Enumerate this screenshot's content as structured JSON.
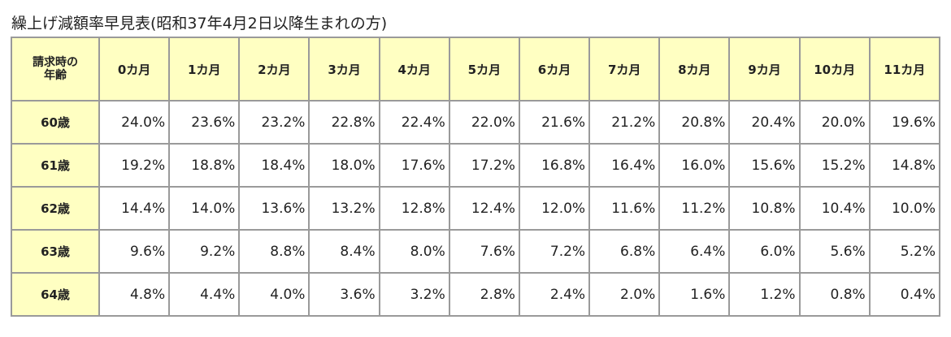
{
  "title": "繰上げ減額率早見表(昭和37年4月2日以降生まれの方)",
  "table": {
    "header": [
      "請求時の年齢",
      "0カ月",
      "1カ月",
      "2カ月",
      "3カ月",
      "4カ月",
      "5カ月",
      "6カ月",
      "7カ月",
      "8カ月",
      "9カ月",
      "10カ月",
      "11カ月"
    ],
    "rows": [
      [
        "60歳",
        "24.0%",
        "23.6%",
        "23.2%",
        "22.8%",
        "22.4%",
        "22.0%",
        "21.6%",
        "21.2%",
        "20.8%",
        "20.4%",
        "20.0%",
        "19.6%"
      ],
      [
        "61歳",
        "19.2%",
        "18.8%",
        "18.4%",
        "18.0%",
        "17.6%",
        "17.2%",
        "16.8%",
        "16.4%",
        "16.0%",
        "15.6%",
        "15.2%",
        "14.8%"
      ],
      [
        "62歳",
        "14.4%",
        "14.0%",
        "13.6%",
        "13.2%",
        "12.8%",
        "12.4%",
        "12.0%",
        "11.6%",
        "11.2%",
        "10.8%",
        "10.4%",
        "10.0%"
      ],
      [
        "63歳",
        "9.6%",
        "9.2%",
        "8.8%",
        "8.4%",
        "8.0%",
        "7.6%",
        "7.2%",
        "6.8%",
        "6.4%",
        "6.0%",
        "5.6%",
        "5.2%"
      ],
      [
        "64歳",
        "4.8%",
        "4.4%",
        "4.0%",
        "3.6%",
        "3.2%",
        "2.8%",
        "2.4%",
        "2.0%",
        "1.6%",
        "1.2%",
        "0.8%",
        "0.4%"
      ]
    ]
  }
}
